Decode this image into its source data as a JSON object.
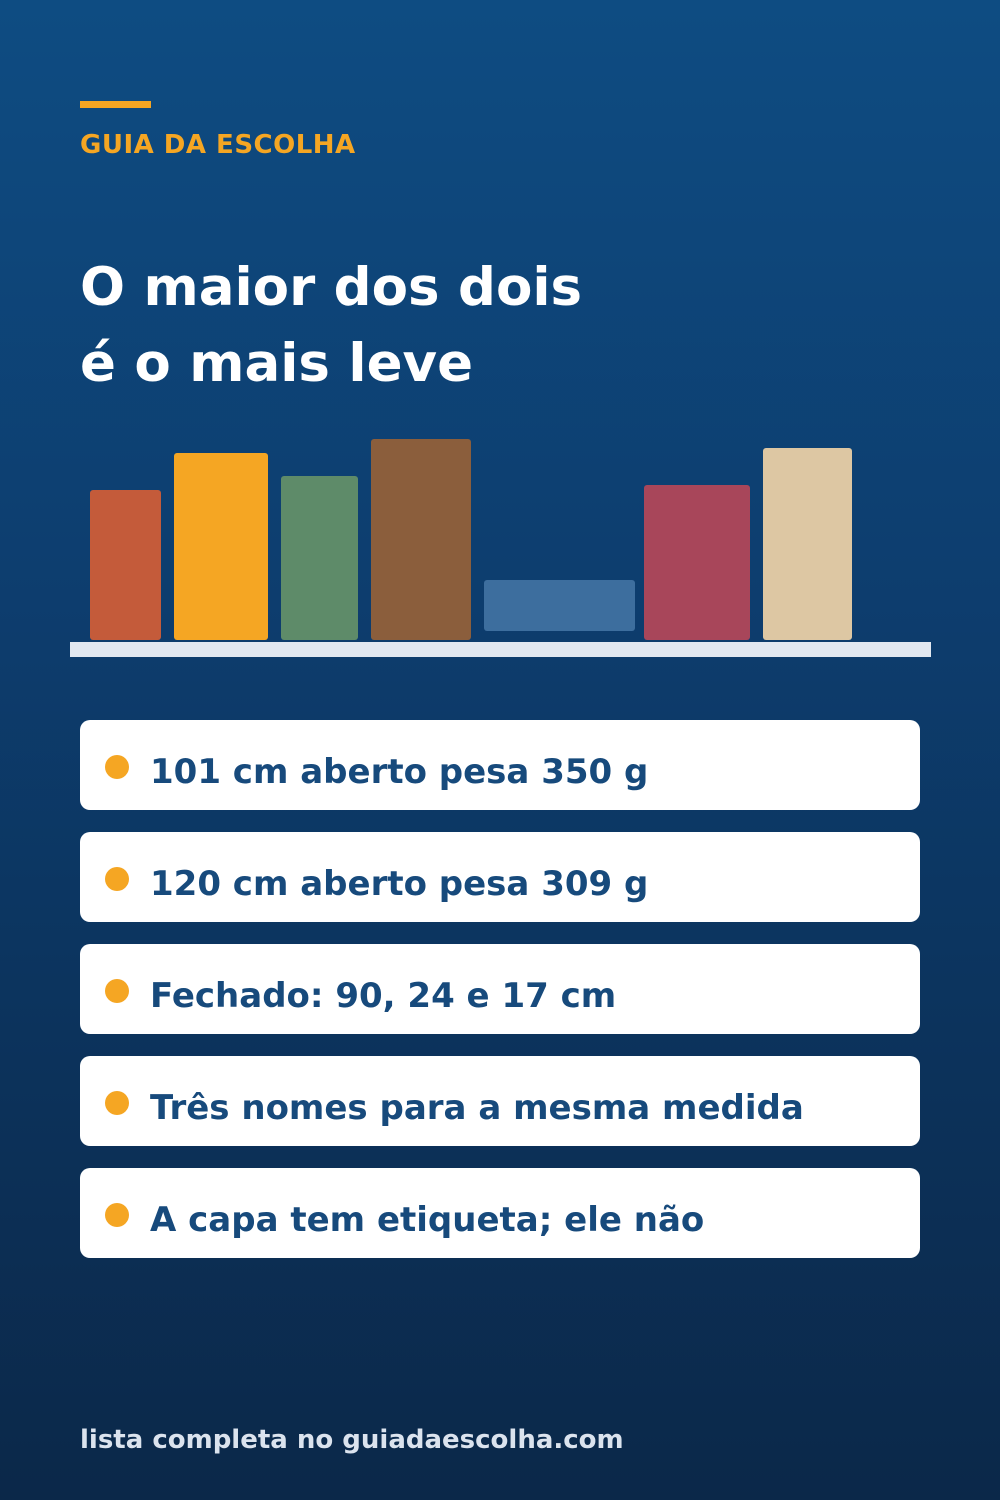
{
  "brand": "GUIA DA ESCOLHA",
  "headline": {
    "line1": "O maior dos dois",
    "line2": "é o mais leve"
  },
  "books": [
    {
      "name": "book-1",
      "color": "#c45b3a"
    },
    {
      "name": "book-2",
      "color": "#f5a623"
    },
    {
      "name": "book-3",
      "color": "#5e8b69"
    },
    {
      "name": "book-4",
      "color": "#8b5e3c"
    },
    {
      "name": "book-lying",
      "color": "#3d6e9e"
    },
    {
      "name": "book-5",
      "color": "#a8465a"
    },
    {
      "name": "book-6",
      "color": "#ddc7a3"
    }
  ],
  "shelf_color": "#e2e8f0",
  "items": [
    "101 cm aberto pesa 350 g",
    "120 cm aberto pesa 309 g",
    "Fechado: 90, 24 e 17 cm",
    "Três nomes para a mesma medida",
    "A capa tem etiqueta; ele não"
  ],
  "footer": "lista completa no guiadaescolha.com",
  "colors": {
    "accent": "#f5a623",
    "card_text": "#174a7c",
    "background_top": "#0e4c82",
    "background_bottom": "#0b2849"
  }
}
